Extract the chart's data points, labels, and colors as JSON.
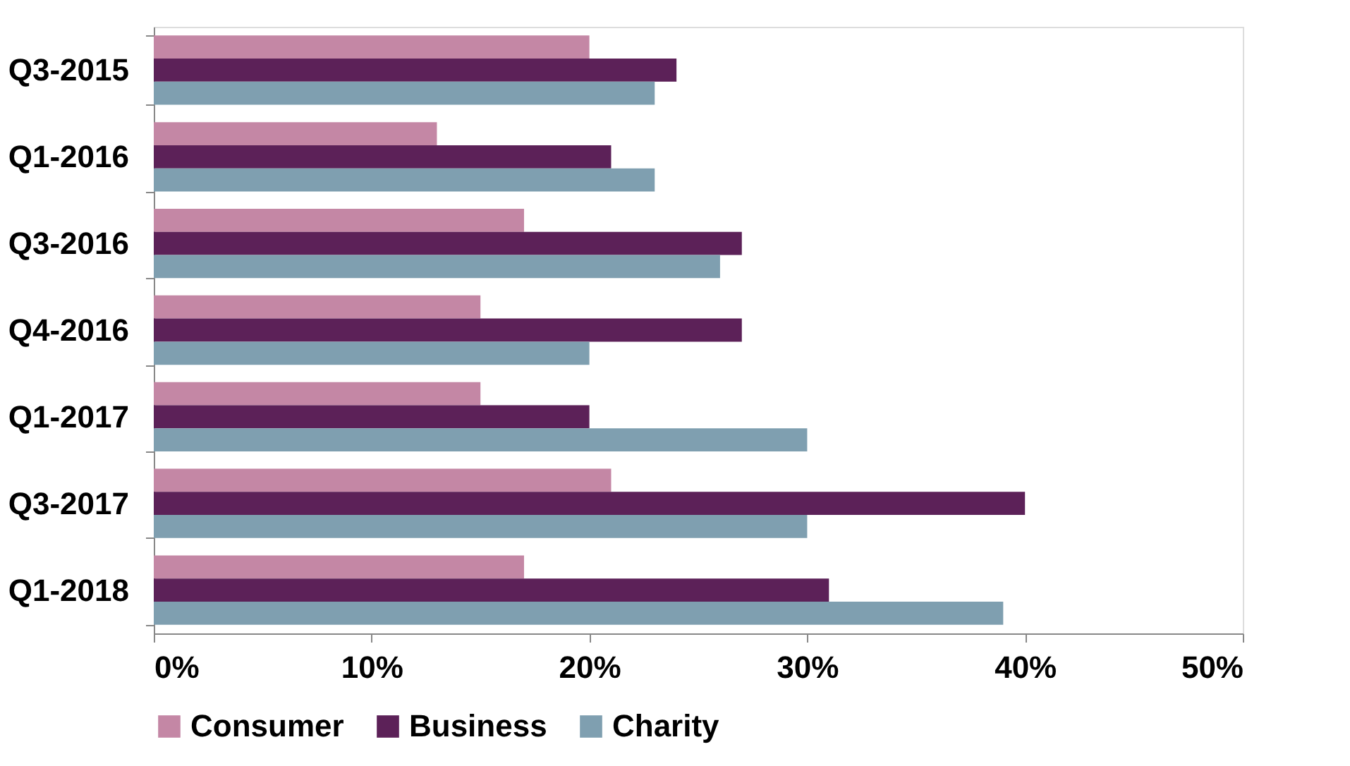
{
  "chart_data": {
    "type": "bar",
    "orientation": "horizontal",
    "categories": [
      "Q3-2015",
      "Q1-2016",
      "Q3-2016",
      "Q4-2016",
      "Q1-2017",
      "Q3-2017",
      "Q1-2018"
    ],
    "series": [
      {
        "name": "Consumer",
        "color": "#c487a5",
        "values": [
          20,
          13,
          17,
          15,
          15,
          21,
          17
        ]
      },
      {
        "name": "Business",
        "color": "#5c2158",
        "values": [
          24,
          21,
          27,
          27,
          20,
          40,
          31
        ]
      },
      {
        "name": "Charity",
        "color": "#7f9fb0",
        "values": [
          23,
          23,
          26,
          20,
          30,
          30,
          39
        ]
      }
    ],
    "xlim": [
      0,
      50
    ],
    "xticks": [
      {
        "value": 0,
        "label": "0%"
      },
      {
        "value": 10,
        "label": "10%"
      },
      {
        "value": 20,
        "label": "20%"
      },
      {
        "value": 30,
        "label": "30%"
      },
      {
        "value": 40,
        "label": "40%"
      },
      {
        "value": 50,
        "label": "50%"
      }
    ],
    "grid": false,
    "legend": "bottom"
  }
}
